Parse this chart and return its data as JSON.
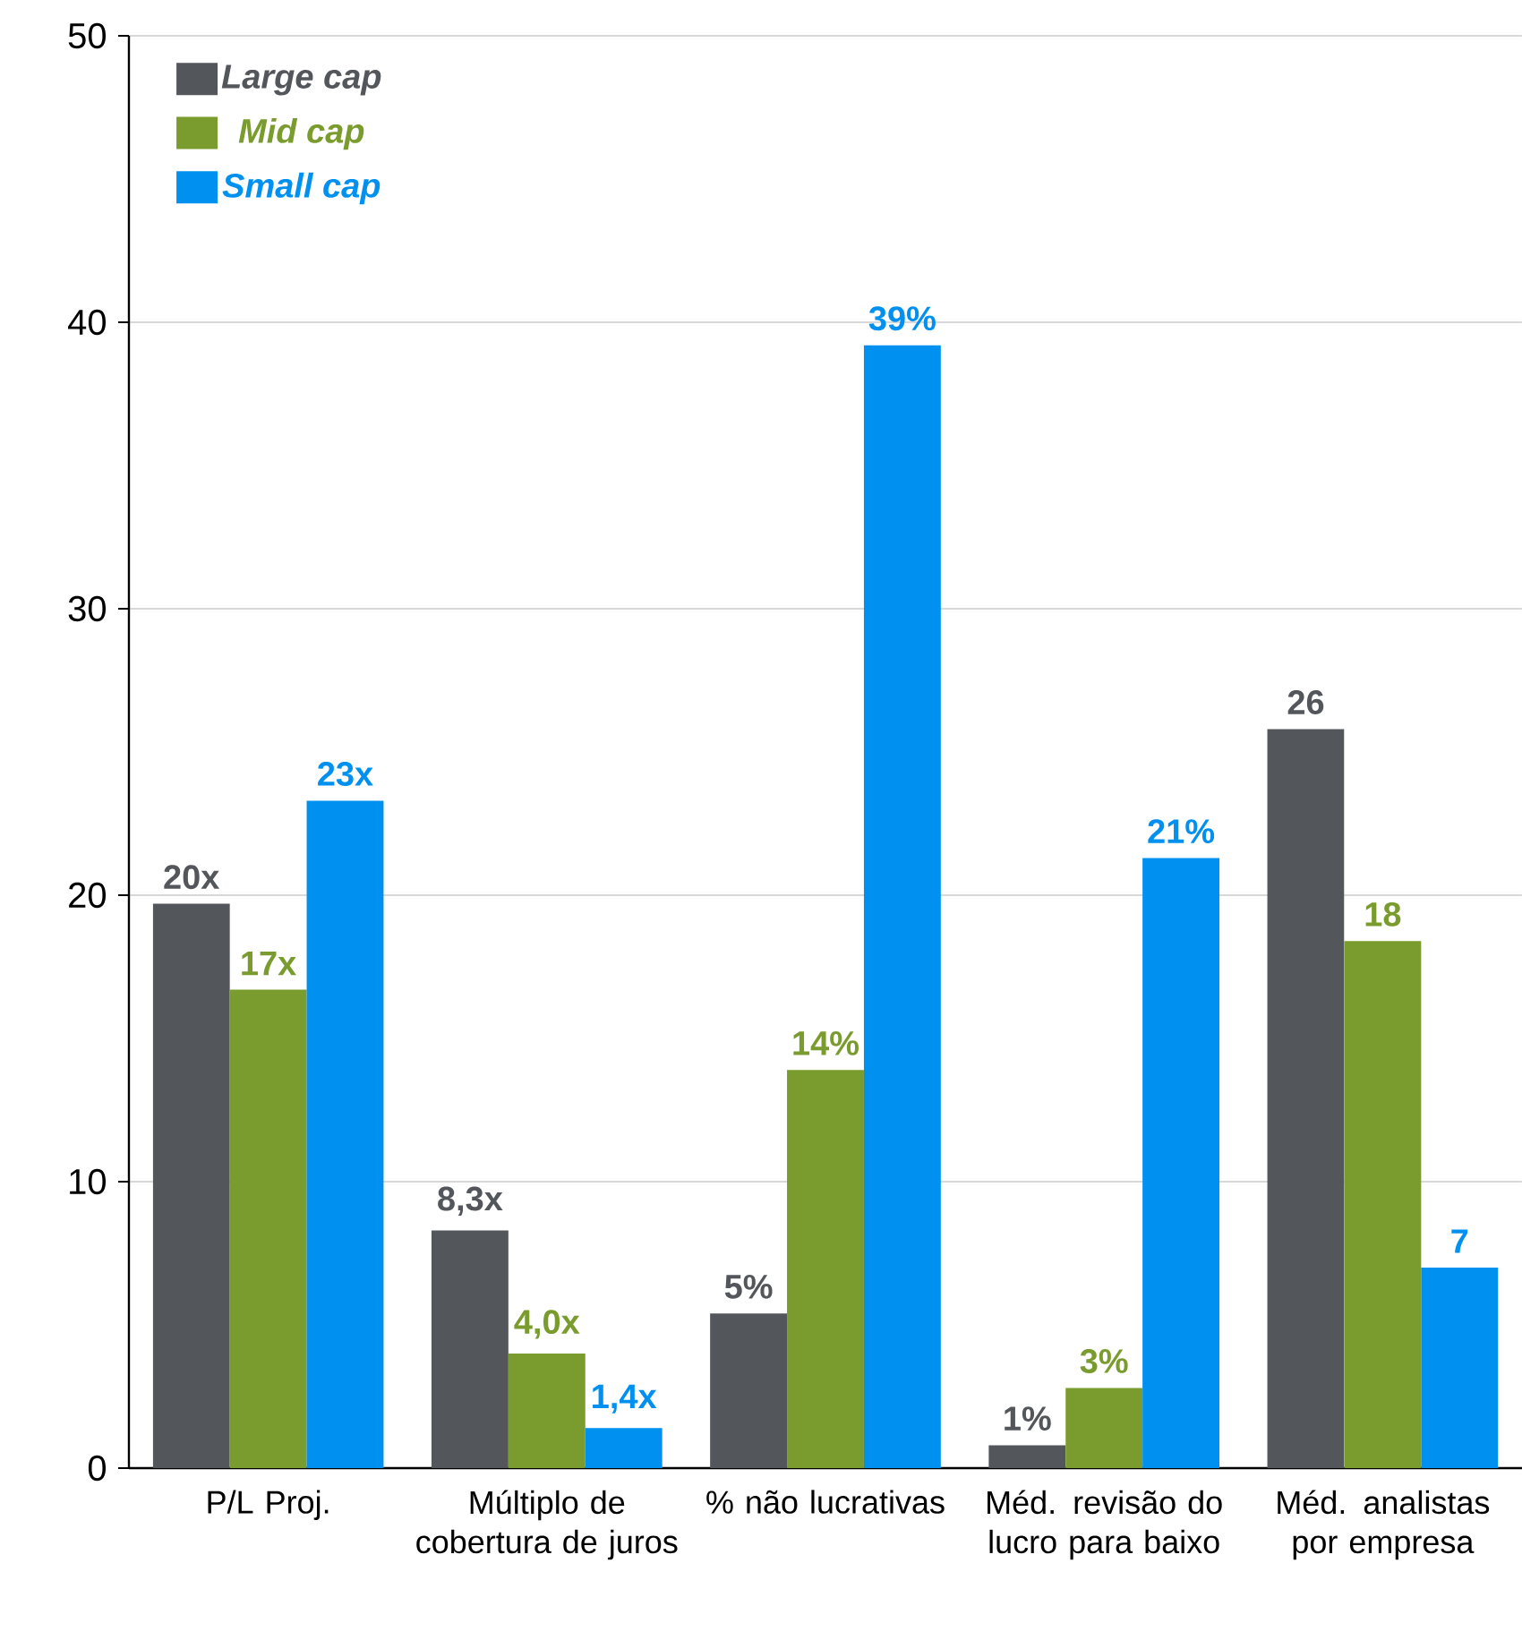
{
  "chart_data": {
    "type": "bar",
    "categories": [
      "P/L Proj.",
      "Múltiplo de cobertura de juros",
      "% não lucrativas",
      "Méd. revisão do lucro para baixo",
      "Méd. analistas por empresa"
    ],
    "series": [
      {
        "name": "Large cap",
        "color": "#53565a",
        "values": [
          19.7,
          8.3,
          5.4,
          0.8,
          25.8
        ],
        "value_labels": [
          "20x",
          "8,3x",
          "5%",
          "1%",
          "26"
        ]
      },
      {
        "name": "Mid cap",
        "color": "#7a9c2e",
        "values": [
          16.7,
          4.0,
          13.9,
          2.8,
          18.4
        ],
        "value_labels": [
          "17x",
          "4,0x",
          "14%",
          "3%",
          "18"
        ]
      },
      {
        "name": "Small cap",
        "color": "#0091f0",
        "values": [
          23.3,
          1.4,
          39.2,
          21.3,
          7.0
        ],
        "value_labels": [
          "23x",
          "1,4x",
          "39%",
          "21%",
          "7"
        ]
      }
    ],
    "ylim": [
      0,
      50
    ],
    "yticks": [
      0,
      10,
      20,
      30,
      40,
      50
    ],
    "grid": "y",
    "legend": "top left"
  }
}
